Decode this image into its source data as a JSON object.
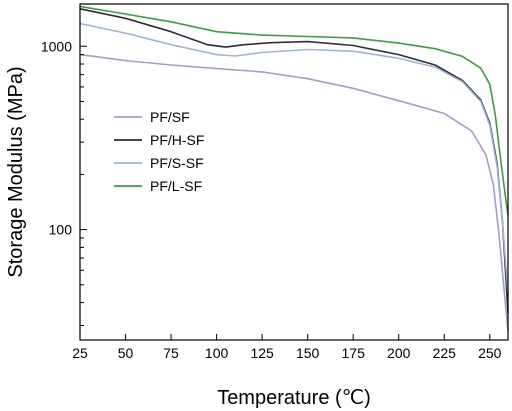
{
  "chart_data": {
    "type": "line",
    "xlabel": "Temperature (℃)",
    "ylabel": "Storage Modulus (MPa)",
    "xlim": [
      25,
      260
    ],
    "ylim": [
      25,
      1700
    ],
    "yscale": "log",
    "x_ticks": [
      25,
      50,
      75,
      100,
      125,
      150,
      175,
      200,
      225,
      250
    ],
    "y_ticks": [
      100,
      1000
    ],
    "x_tick_labels": [
      "25",
      "50",
      "75",
      "100",
      "125",
      "150",
      "175",
      "200",
      "225",
      "250"
    ],
    "y_tick_labels": [
      "100",
      "1000"
    ],
    "legend_position": "left-middle",
    "grid": false,
    "series": [
      {
        "name": "PF/SF",
        "color": "#a89bc9",
        "points": [
          [
            25,
            900
          ],
          [
            50,
            835
          ],
          [
            75,
            790
          ],
          [
            100,
            755
          ],
          [
            125,
            725
          ],
          [
            150,
            665
          ],
          [
            175,
            590
          ],
          [
            200,
            505
          ],
          [
            225,
            430
          ],
          [
            240,
            345
          ],
          [
            248,
            255
          ],
          [
            252,
            175
          ],
          [
            255,
            95
          ],
          [
            258,
            45
          ],
          [
            260,
            28
          ]
        ]
      },
      {
        "name": "PF/H-SF",
        "color": "#2e2e36",
        "points": [
          [
            25,
            1600
          ],
          [
            50,
            1420
          ],
          [
            75,
            1200
          ],
          [
            95,
            1020
          ],
          [
            105,
            990
          ],
          [
            115,
            1020
          ],
          [
            130,
            1045
          ],
          [
            150,
            1060
          ],
          [
            175,
            1010
          ],
          [
            200,
            900
          ],
          [
            220,
            790
          ],
          [
            235,
            650
          ],
          [
            245,
            510
          ],
          [
            250,
            380
          ],
          [
            254,
            230
          ],
          [
            257,
            110
          ],
          [
            260,
            35
          ]
        ]
      },
      {
        "name": "PF/S-SF",
        "color": "#9db4da",
        "points": [
          [
            25,
            1330
          ],
          [
            50,
            1180
          ],
          [
            75,
            1020
          ],
          [
            100,
            900
          ],
          [
            110,
            885
          ],
          [
            125,
            925
          ],
          [
            150,
            960
          ],
          [
            175,
            940
          ],
          [
            200,
            860
          ],
          [
            220,
            770
          ],
          [
            235,
            640
          ],
          [
            245,
            500
          ],
          [
            250,
            370
          ],
          [
            254,
            220
          ],
          [
            257,
            110
          ],
          [
            260,
            45
          ]
        ]
      },
      {
        "name": "PF/L-SF",
        "color": "#3e9e3e",
        "points": [
          [
            25,
            1650
          ],
          [
            50,
            1500
          ],
          [
            75,
            1360
          ],
          [
            100,
            1200
          ],
          [
            125,
            1150
          ],
          [
            150,
            1130
          ],
          [
            175,
            1110
          ],
          [
            200,
            1040
          ],
          [
            220,
            970
          ],
          [
            235,
            880
          ],
          [
            245,
            760
          ],
          [
            250,
            620
          ],
          [
            253,
            420
          ],
          [
            256,
            240
          ],
          [
            259,
            140
          ],
          [
            260,
            120
          ]
        ]
      }
    ]
  }
}
